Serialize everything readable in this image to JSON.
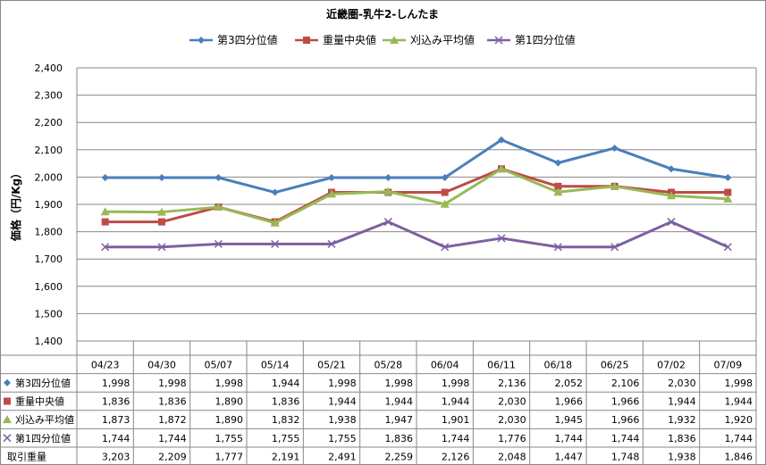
{
  "chart_data": {
    "type": "line",
    "title": "近畿圏-乳牛2-しんたま",
    "ylabel": "価格（円/Kg）",
    "xlabel": "",
    "ylim": [
      1400,
      2400
    ],
    "yticks": [
      "1,400",
      "1,500",
      "1,600",
      "1,700",
      "1,800",
      "1,900",
      "2,000",
      "2,100",
      "2,200",
      "2,300",
      "2,400"
    ],
    "categories": [
      "04/23",
      "04/30",
      "05/07",
      "05/14",
      "05/21",
      "05/28",
      "06/04",
      "06/11",
      "06/18",
      "06/25",
      "07/02",
      "07/09"
    ],
    "grid": true,
    "legend_position": "top",
    "series": [
      {
        "name": "第3四分位値",
        "color": "#4a7ebb",
        "marker": "diamond",
        "values": [
          1998,
          1998,
          1998,
          1944,
          1998,
          1998,
          1998,
          2136,
          2052,
          2106,
          2030,
          1998
        ],
        "labels": [
          "1,998",
          "1,998",
          "1,998",
          "1,944",
          "1,998",
          "1,998",
          "1,998",
          "2,136",
          "2,052",
          "2,106",
          "2,030",
          "1,998"
        ]
      },
      {
        "name": "重量中央値",
        "color": "#be4b48",
        "marker": "square",
        "values": [
          1836,
          1836,
          1890,
          1836,
          1944,
          1944,
          1944,
          2030,
          1966,
          1966,
          1944,
          1944
        ],
        "labels": [
          "1,836",
          "1,836",
          "1,890",
          "1,836",
          "1,944",
          "1,944",
          "1,944",
          "2,030",
          "1,966",
          "1,966",
          "1,944",
          "1,944"
        ]
      },
      {
        "name": "刈込み平均値",
        "color": "#98b954",
        "marker": "triangle",
        "values": [
          1873,
          1872,
          1890,
          1832,
          1938,
          1947,
          1901,
          2030,
          1945,
          1966,
          1932,
          1920
        ],
        "labels": [
          "1,873",
          "1,872",
          "1,890",
          "1,832",
          "1,938",
          "1,947",
          "1,901",
          "2,030",
          "1,945",
          "1,966",
          "1,932",
          "1,920"
        ]
      },
      {
        "name": "第1四分位値",
        "color": "#7d60a0",
        "marker": "x",
        "values": [
          1744,
          1744,
          1755,
          1755,
          1755,
          1836,
          1744,
          1776,
          1744,
          1744,
          1836,
          1744
        ],
        "labels": [
          "1,744",
          "1,744",
          "1,755",
          "1,755",
          "1,755",
          "1,836",
          "1,744",
          "1,776",
          "1,744",
          "1,744",
          "1,836",
          "1,744"
        ]
      }
    ],
    "table_extra_row": {
      "name": "取引重量",
      "labels": [
        "3,203",
        "2,209",
        "1,777",
        "2,191",
        "2,491",
        "2,259",
        "2,126",
        "2,048",
        "1,447",
        "1,748",
        "1,938",
        "1,846"
      ]
    }
  }
}
